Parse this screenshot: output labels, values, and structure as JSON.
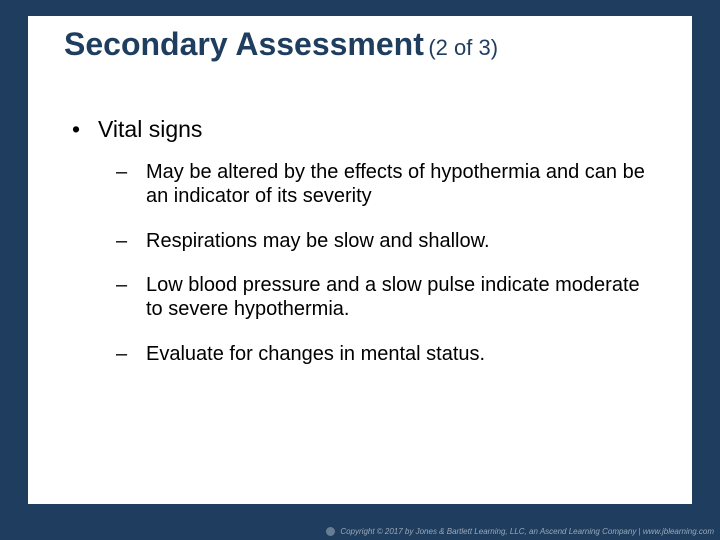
{
  "colors": {
    "background": "#1f3e5f",
    "card": "#ffffff",
    "title": "#1f3e5f",
    "body_text": "#000000",
    "footer_text": "#9aa8b8"
  },
  "typography": {
    "title_fontsize_pt": 24,
    "pager_fontsize_pt": 17,
    "lvl1_fontsize_pt": 17,
    "lvl2_fontsize_pt": 15,
    "footer_fontsize_pt": 6,
    "family": "Arial"
  },
  "title": {
    "main": "Secondary Assessment",
    "pager": "(2 of 3)"
  },
  "bullets": {
    "lvl1_marker": "•",
    "lvl2_marker": "–",
    "lvl1": [
      {
        "text": "Vital signs",
        "children": [
          "May be altered by the effects of hypothermia and can be an indicator of its severity",
          "Respirations may be slow and shallow.",
          "Low blood pressure and a slow pulse indicate moderate to severe hypothermia.",
          "Evaluate for changes in mental status."
        ]
      }
    ]
  },
  "footer": {
    "text": "Copyright © 2017 by Jones & Bartlett Learning, LLC, an Ascend Learning Company | www.jblearning.com"
  }
}
